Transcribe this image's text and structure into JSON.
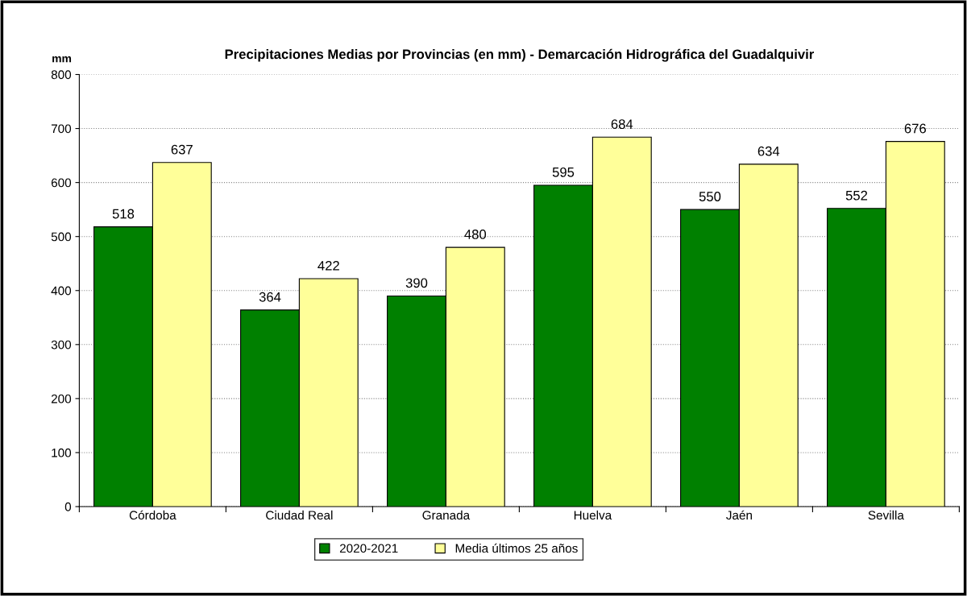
{
  "chart_data": {
    "type": "bar",
    "title": "Precipitaciones Medias por Provincias (en mm) - Demarcación Hidrográfica del Guadalquivir",
    "ylabel": "mm",
    "categories": [
      "Córdoba",
      "Ciudad Real",
      "Granada",
      "Huelva",
      "Jaén",
      "Sevilla"
    ],
    "series": [
      {
        "name": "2020-2021",
        "color": "#008000",
        "values": [
          518,
          364,
          390,
          595,
          550,
          552
        ]
      },
      {
        "name": "Media últimos 25 años",
        "color": "#ffff99",
        "values": [
          637,
          422,
          480,
          684,
          634,
          676
        ]
      }
    ],
    "ylim": [
      0,
      800
    ],
    "yticks": [
      0,
      100,
      200,
      300,
      400,
      500,
      600,
      700,
      800
    ],
    "grid": "y",
    "legend": "bottom",
    "data_labels": true
  }
}
